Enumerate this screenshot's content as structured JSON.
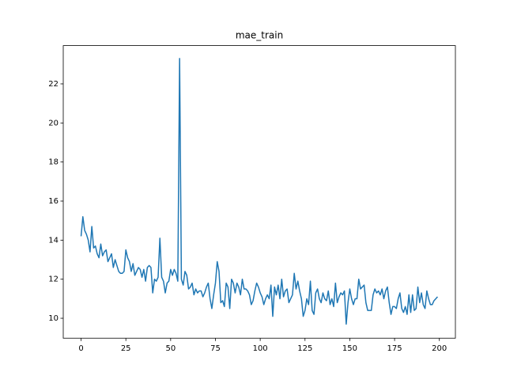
{
  "chart_data": {
    "type": "line",
    "title": "mae_train",
    "x": [
      0,
      1,
      2,
      3,
      4,
      5,
      6,
      7,
      8,
      9,
      10,
      11,
      12,
      13,
      14,
      15,
      16,
      17,
      18,
      19,
      20,
      21,
      22,
      23,
      24,
      25,
      26,
      27,
      28,
      29,
      30,
      31,
      32,
      33,
      34,
      35,
      36,
      37,
      38,
      39,
      40,
      41,
      42,
      43,
      44,
      45,
      46,
      47,
      48,
      49,
      50,
      51,
      52,
      53,
      54,
      55,
      56,
      57,
      58,
      59,
      60,
      61,
      62,
      63,
      64,
      65,
      66,
      67,
      68,
      69,
      70,
      71,
      72,
      73,
      74,
      75,
      76,
      77,
      78,
      79,
      80,
      81,
      82,
      83,
      84,
      85,
      86,
      87,
      88,
      89,
      90,
      91,
      92,
      93,
      94,
      95,
      96,
      97,
      98,
      99,
      100,
      101,
      102,
      103,
      104,
      105,
      106,
      107,
      108,
      109,
      110,
      111,
      112,
      113,
      114,
      115,
      116,
      117,
      118,
      119,
      120,
      121,
      122,
      123,
      124,
      125,
      126,
      127,
      128,
      129,
      130,
      131,
      132,
      133,
      134,
      135,
      136,
      137,
      138,
      139,
      140,
      141,
      142,
      143,
      144,
      145,
      146,
      147,
      148,
      149,
      150,
      151,
      152,
      153,
      154,
      155,
      156,
      157,
      158,
      159,
      160,
      161,
      162,
      163,
      164,
      165,
      166,
      167,
      168,
      169,
      170,
      171,
      172,
      173,
      174,
      175,
      176,
      177,
      178,
      179,
      180,
      181,
      182,
      183,
      184,
      185,
      186,
      187,
      188,
      189,
      190,
      191,
      192,
      193,
      194,
      195,
      196,
      197,
      198,
      199
    ],
    "series": [
      {
        "color": "#1f77b4",
        "values": [
          14.2,
          15.2,
          14.5,
          14.3,
          14.0,
          13.4,
          14.7,
          13.6,
          13.7,
          13.3,
          13.1,
          13.8,
          13.2,
          13.4,
          13.5,
          12.9,
          13.1,
          13.3,
          12.6,
          13.0,
          12.7,
          12.4,
          12.3,
          12.3,
          12.4,
          13.5,
          13.1,
          12.9,
          12.4,
          12.8,
          12.2,
          12.4,
          12.6,
          12.5,
          12.1,
          12.5,
          11.9,
          12.6,
          12.7,
          12.6,
          11.3,
          12.0,
          11.9,
          12.1,
          14.1,
          12.1,
          11.9,
          11.3,
          11.8,
          11.9,
          12.5,
          12.2,
          12.5,
          12.3,
          11.9,
          23.3,
          12.0,
          11.7,
          12.4,
          12.2,
          11.5,
          11.6,
          11.8,
          11.2,
          11.5,
          11.3,
          11.4,
          11.4,
          11.1,
          11.3,
          11.6,
          11.8,
          11.0,
          10.5,
          11.2,
          11.8,
          12.9,
          12.4,
          10.8,
          10.9,
          10.6,
          11.8,
          11.6,
          10.5,
          12.0,
          11.8,
          11.3,
          11.8,
          11.6,
          11.2,
          12.0,
          11.5,
          11.5,
          11.4,
          11.2,
          10.7,
          10.9,
          11.4,
          11.8,
          11.6,
          11.3,
          11.1,
          10.7,
          11.0,
          11.2,
          11.0,
          11.7,
          10.1,
          11.6,
          11.2,
          11.7,
          11.0,
          12.0,
          11.1,
          11.4,
          11.5,
          10.8,
          11.0,
          11.2,
          12.3,
          11.5,
          11.9,
          11.4,
          11.0,
          10.1,
          10.4,
          11.0,
          10.7,
          11.9,
          10.4,
          10.2,
          11.3,
          11.5,
          11.0,
          10.8,
          11.3,
          11.0,
          10.9,
          11.4,
          10.7,
          11.0,
          10.6,
          11.8,
          10.8,
          11.1,
          11.3,
          11.2,
          11.4,
          9.7,
          10.8,
          11.5,
          11.0,
          10.7,
          11.0,
          11.0,
          12.0,
          11.5,
          11.6,
          11.7,
          10.8,
          10.4,
          10.4,
          10.4,
          11.2,
          11.5,
          11.3,
          11.4,
          11.2,
          11.5,
          11.0,
          11.4,
          11.6,
          10.8,
          10.2,
          10.6,
          10.6,
          10.5,
          11.0,
          11.3,
          10.5,
          10.3,
          10.6,
          10.2,
          11.2,
          10.3,
          11.2,
          10.4,
          10.5,
          11.6,
          10.8,
          11.3,
          10.7,
          10.5,
          11.4,
          11.0,
          10.7,
          10.7,
          10.9,
          11.0,
          11.1
        ]
      }
    ],
    "xlim": [
      -9.95,
      208.95
    ],
    "ylim": [
      8.98,
      23.96
    ],
    "xticks": [
      0,
      25,
      50,
      75,
      100,
      125,
      150,
      175,
      200
    ],
    "yticks": [
      10,
      12,
      14,
      16,
      18,
      20,
      22
    ]
  }
}
